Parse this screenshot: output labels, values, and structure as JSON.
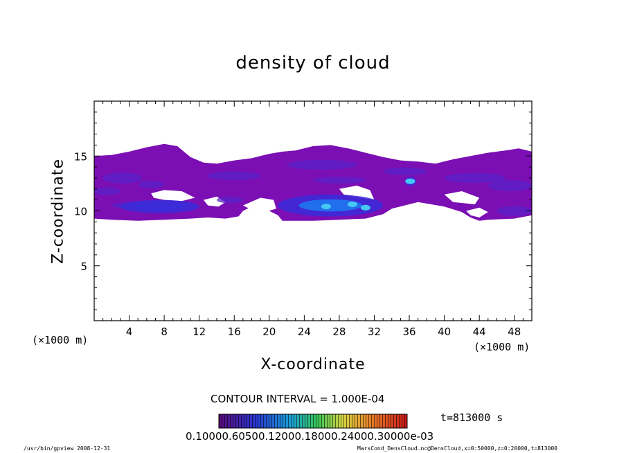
{
  "chart_data": {
    "type": "heatmap",
    "title": "density of cloud",
    "xlabel": "X-coordinate",
    "ylabel": "Z-coordinate",
    "x_unit": "(×1000 m)",
    "x_unit_right": "(×1000 m)",
    "xlim": [
      0,
      50
    ],
    "ylim": [
      0,
      20
    ],
    "xticks": [
      4,
      8,
      12,
      16,
      20,
      24,
      28,
      32,
      36,
      40,
      44,
      48
    ],
    "xtick_labels": [
      "4",
      "8",
      "12",
      "16",
      "20",
      "24",
      "28",
      "32",
      "36",
      "40",
      "44",
      "48"
    ],
    "yticks": [
      5,
      10,
      15
    ],
    "ytick_labels": [
      "5",
      "10",
      "15"
    ],
    "contour_interval": "CONTOUR INTERVAL = 1.000E-04",
    "time_label": "t=813000 s",
    "colorbar_labels": "0.10000.60500.12000.18000.24000.30000e-03",
    "colors": {
      "base": "#7b0fb4",
      "mid": "#3a2cd9",
      "high": "#1e78f0",
      "peak": "#46c8f5"
    },
    "cloud_layer": {
      "z_bottom": [
        9.1,
        9.6
      ],
      "z_top": [
        15.0,
        16.2
      ]
    },
    "high_density_regions": [
      {
        "x": [
          21,
          33
        ],
        "z": [
          9.5,
          11.5
        ],
        "level": "high"
      },
      {
        "x": [
          35.5,
          36.8
        ],
        "z": [
          12.3,
          13.1
        ],
        "level": "peak"
      },
      {
        "x": [
          3,
          12
        ],
        "z": [
          9.8,
          11.0
        ],
        "level": "mid"
      }
    ]
  },
  "footer": {
    "left": "/usr/bin/gpview   2008-12-31",
    "right": "MarsCond_DensCloud.nc@DensCloud,x=0:50000,z=0:20000,t=813000"
  }
}
